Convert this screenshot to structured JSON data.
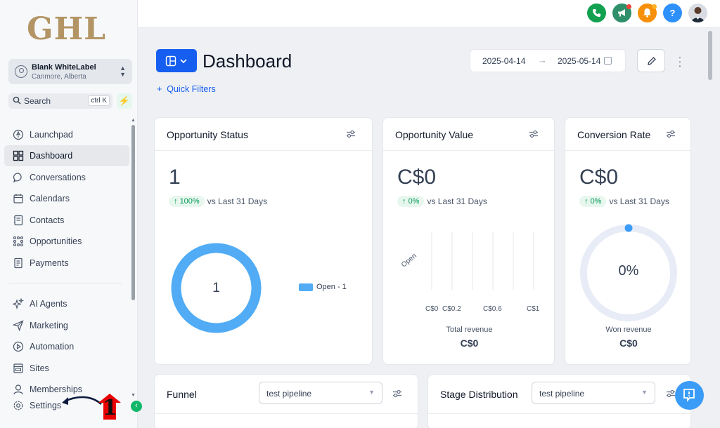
{
  "logo": {
    "text": "GHL"
  },
  "account": {
    "name": "Blank WhiteLabel",
    "location": "Canmore, Alberta"
  },
  "search": {
    "label": "Search",
    "shortcut": "ctrl K"
  },
  "sidebar": {
    "items": [
      {
        "label": "Launchpad",
        "icon": "rocket-icon"
      },
      {
        "label": "Dashboard",
        "icon": "dashboard-icon",
        "active": true
      },
      {
        "label": "Conversations",
        "icon": "chat-icon"
      },
      {
        "label": "Calendars",
        "icon": "calendar-icon"
      },
      {
        "label": "Contacts",
        "icon": "contacts-icon"
      },
      {
        "label": "Opportunities",
        "icon": "opportunities-icon"
      },
      {
        "label": "Payments",
        "icon": "payments-icon"
      },
      {
        "label": "AI Agents",
        "icon": "sparkle-icon"
      },
      {
        "label": "Marketing",
        "icon": "send-icon"
      },
      {
        "label": "Automation",
        "icon": "automation-icon"
      },
      {
        "label": "Sites",
        "icon": "sites-icon"
      },
      {
        "label": "Memberships",
        "icon": "membership-icon"
      },
      {
        "label": "Settings",
        "icon": "gear-icon"
      }
    ],
    "callout_number": "1"
  },
  "topbar": {
    "help_label": "?",
    "colors": {
      "phone": "#12a150",
      "megaphone": "#2f8f6a",
      "bell": "#f79009",
      "help": "#2e90fa"
    }
  },
  "main": {
    "title": "Dashboard",
    "quick_filters": "Quick Filters",
    "date_start": "2025-04-14",
    "date_end": "2025-05-14",
    "accent": "#155eef"
  },
  "cards": {
    "status": {
      "title": "Opportunity Status",
      "value": "1",
      "trend": "100%",
      "vs": "vs Last 31 Days",
      "center": "1",
      "legend": "Open - 1"
    },
    "value": {
      "title": "Opportunity Value",
      "value": "C$0",
      "trend": "0%",
      "vs": "vs Last 31 Days",
      "ylabel": "Open",
      "xlabels": [
        "C$0",
        "C$0.2",
        "C$0.6",
        "C$1"
      ],
      "footer_label": "Total revenue",
      "footer_value": "C$0"
    },
    "conversion": {
      "title": "Conversion Rate",
      "value": "C$0",
      "trend": "0%",
      "vs": "vs Last 31 Days",
      "center": "0%",
      "footer_label": "Won revenue",
      "footer_value": "C$0"
    },
    "funnel": {
      "title": "Funnel",
      "pipeline": "test pipeline"
    },
    "stage": {
      "title": "Stage Distribution",
      "pipeline": "test pipeline"
    }
  }
}
